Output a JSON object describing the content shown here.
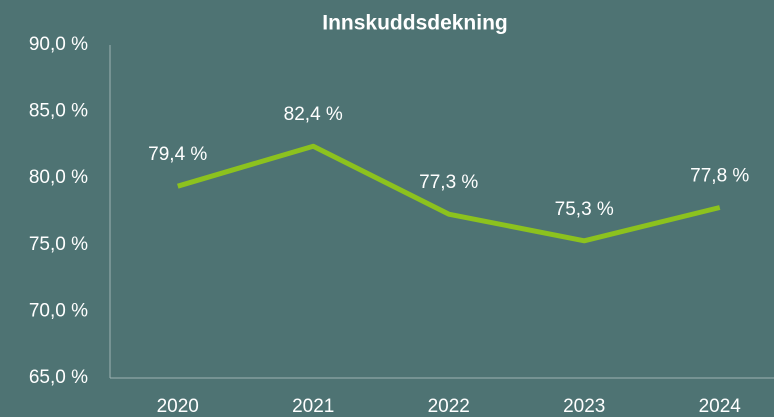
{
  "chart_data": {
    "type": "line",
    "title": "Innskuddsdekning",
    "categories": [
      "2020",
      "2021",
      "2022",
      "2023",
      "2024"
    ],
    "series": [
      {
        "name": "Innskuddsdekning",
        "color": "#8cc21e",
        "values": [
          79.4,
          82.4,
          77.3,
          75.3,
          77.8
        ],
        "value_labels": [
          "79,4 %",
          "82,4 %",
          "77,3 %",
          "75,3 %",
          "77,8 %"
        ]
      }
    ],
    "ylim": [
      65,
      90
    ],
    "yticks": [
      {
        "value": 65,
        "label": "65,0 %"
      },
      {
        "value": 70,
        "label": "70,0 %"
      },
      {
        "value": 75,
        "label": "75,0 %"
      },
      {
        "value": 80,
        "label": "80,0 %"
      },
      {
        "value": 85,
        "label": "85,0 %"
      },
      {
        "value": 90,
        "label": "90,0 %"
      }
    ],
    "grid": false
  }
}
